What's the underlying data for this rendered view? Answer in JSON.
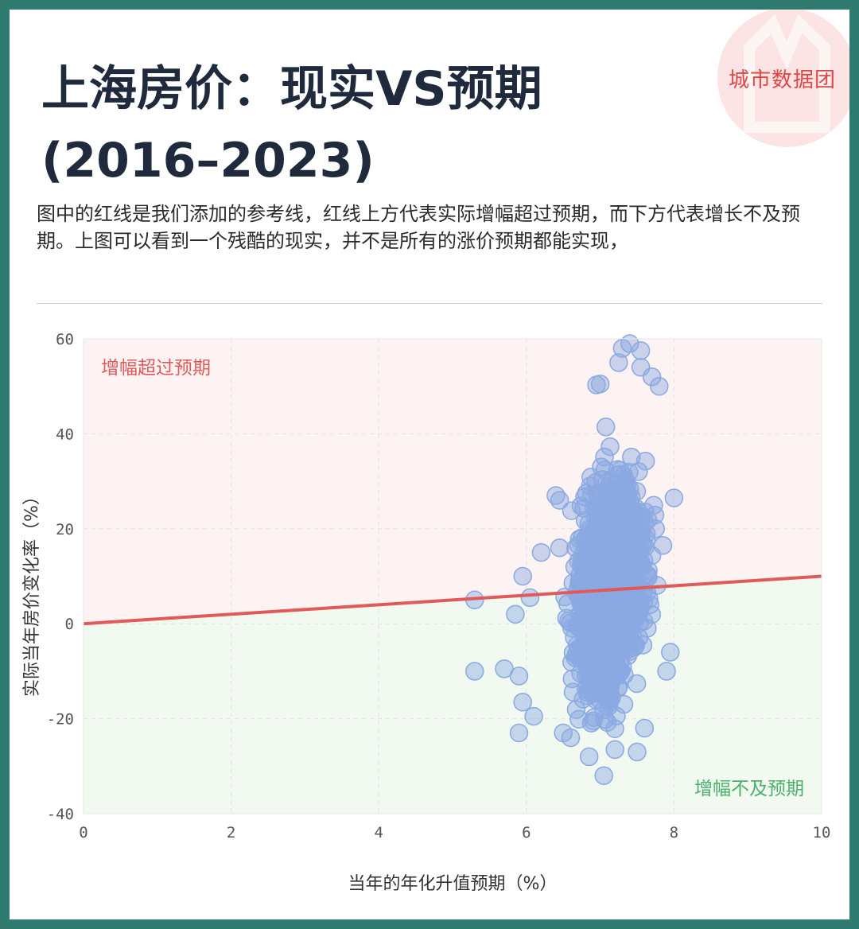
{
  "brand": "城市数据团",
  "title_line1": "上海房价：现实VS预期",
  "title_line2": "(2016–2023)",
  "subtitle": "图中的红线是我们添加的参考线，红线上方代表实际增幅超过预期，而下方代表增长不及预期。上图可以看到一个残酷的现实，并不是所有的涨价预期都能实现，",
  "colors": {
    "background_border": "#2e7a6e",
    "above_region": "#fdf3f3",
    "below_region": "#f1f9f1",
    "reference_line": "#e05a5a",
    "points": "#8aa8e2",
    "above_label": "#e05a5a",
    "below_label": "#4caf6a"
  },
  "chart_data": {
    "type": "scatter",
    "xlabel": "当年的年化升值预期（%）",
    "ylabel": "实际当年房价变化率（%）",
    "xlim": [
      0,
      10
    ],
    "ylim": [
      -40,
      60
    ],
    "x_ticks": [
      "0",
      "2",
      "4",
      "6",
      "8",
      "10"
    ],
    "y_ticks": [
      "60",
      "40",
      "20",
      "0",
      "-20",
      "-40"
    ],
    "grid": true,
    "reference_line": {
      "from": [
        0,
        0
      ],
      "to": [
        10,
        10
      ]
    },
    "region_labels": {
      "above": "增幅超过预期",
      "below": "增幅不及预期"
    },
    "points_summary": {
      "count_approx": 2500,
      "x_center": 7.1,
      "x_range": [
        5.3,
        8.0
      ],
      "y_range": [
        -32,
        59
      ],
      "y_center": 8
    },
    "outliers": [
      [
        5.3,
        5
      ],
      [
        5.3,
        -10
      ],
      [
        5.7,
        -9.5
      ],
      [
        5.85,
        2
      ],
      [
        5.9,
        -11
      ],
      [
        5.95,
        10
      ],
      [
        5.95,
        -16.5
      ],
      [
        5.9,
        -23
      ],
      [
        6.1,
        -19.5
      ],
      [
        6.05,
        5.5
      ],
      [
        6.2,
        15
      ],
      [
        6.4,
        27
      ],
      [
        6.45,
        26
      ],
      [
        6.45,
        16
      ],
      [
        7.4,
        59
      ],
      [
        7.3,
        58
      ],
      [
        7.55,
        57.5
      ],
      [
        7.25,
        55
      ],
      [
        7.0,
        50.5
      ],
      [
        6.95,
        50.3
      ],
      [
        7.55,
        54
      ],
      [
        7.7,
        52
      ],
      [
        7.8,
        50
      ],
      [
        8.0,
        26.5
      ],
      [
        7.95,
        -6
      ],
      [
        7.9,
        -10
      ],
      [
        6.85,
        -28
      ],
      [
        7.05,
        -32
      ],
      [
        7.5,
        -27
      ],
      [
        7.2,
        -26.5
      ],
      [
        6.5,
        -23
      ],
      [
        6.6,
        -24
      ],
      [
        7.6,
        -22
      ],
      [
        7.75,
        20
      ],
      [
        7.85,
        16.5
      ]
    ]
  }
}
